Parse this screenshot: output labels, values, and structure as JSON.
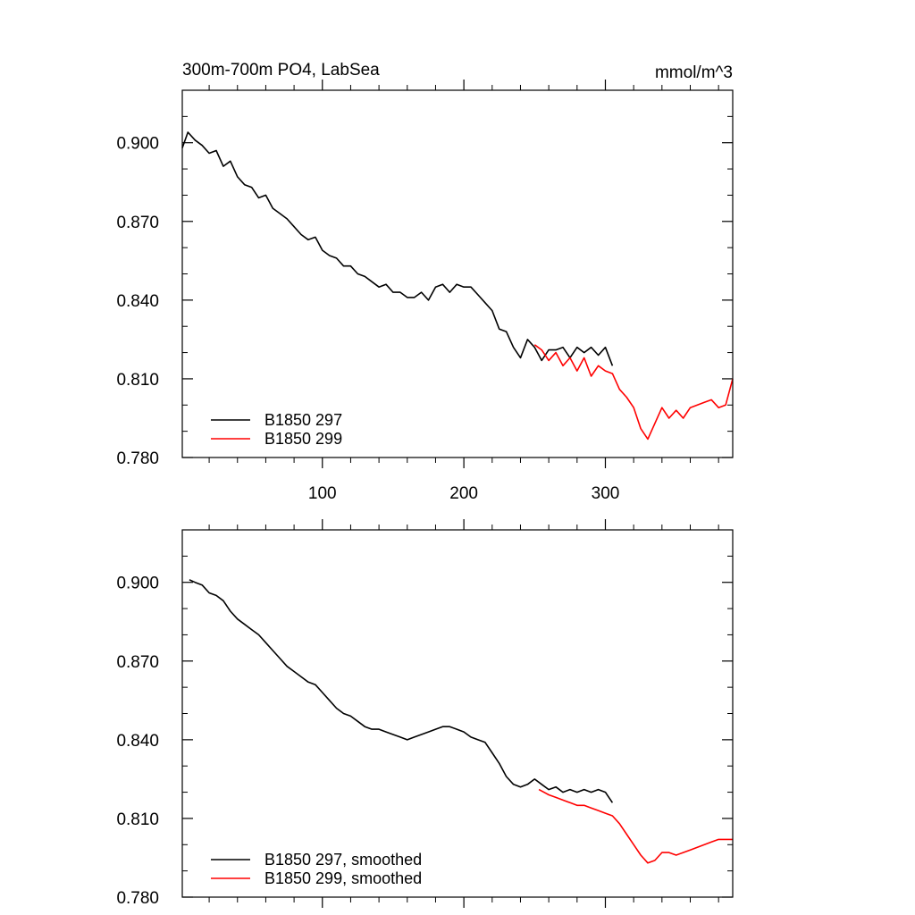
{
  "chart_data": [
    {
      "type": "line",
      "title": "300m-700m PO4, LabSea",
      "units": "mmol/m^3",
      "xlim": [
        1,
        390
      ],
      "ylim": [
        0.78,
        0.92
      ],
      "xticks": [
        100,
        200,
        300
      ],
      "yticks": [
        0.78,
        0.81,
        0.84,
        0.87,
        0.9
      ],
      "ytick_labels": [
        "0.780",
        "0.810",
        "0.840",
        "0.870",
        "0.900"
      ],
      "xtick_labels": [
        "100",
        "200",
        "300"
      ],
      "legend_position": "bottom-left",
      "series": [
        {
          "name": "B1850 297",
          "color": "#000000",
          "x": [
            1,
            5,
            10,
            15,
            20,
            25,
            30,
            35,
            40,
            45,
            50,
            55,
            60,
            65,
            70,
            75,
            80,
            85,
            90,
            95,
            100,
            105,
            110,
            115,
            120,
            125,
            130,
            135,
            140,
            145,
            150,
            155,
            160,
            165,
            170,
            175,
            180,
            185,
            190,
            195,
            200,
            205,
            210,
            215,
            220,
            225,
            230,
            235,
            240,
            245,
            250,
            255,
            260,
            265,
            270,
            275,
            280,
            285,
            290,
            295,
            300,
            305
          ],
          "y": [
            0.898,
            0.904,
            0.901,
            0.899,
            0.896,
            0.897,
            0.891,
            0.893,
            0.887,
            0.884,
            0.883,
            0.879,
            0.88,
            0.875,
            0.873,
            0.871,
            0.868,
            0.865,
            0.863,
            0.864,
            0.859,
            0.857,
            0.856,
            0.853,
            0.853,
            0.85,
            0.849,
            0.847,
            0.845,
            0.846,
            0.843,
            0.843,
            0.841,
            0.841,
            0.843,
            0.84,
            0.845,
            0.846,
            0.843,
            0.846,
            0.845,
            0.845,
            0.842,
            0.839,
            0.836,
            0.829,
            0.828,
            0.822,
            0.818,
            0.825,
            0.822,
            0.817,
            0.821,
            0.821,
            0.822,
            0.818,
            0.822,
            0.82,
            0.822,
            0.819,
            0.822,
            0.815
          ]
        },
        {
          "name": "B1850 299",
          "color": "#ff0000",
          "x": [
            250,
            255,
            260,
            265,
            270,
            275,
            280,
            285,
            290,
            295,
            300,
            305,
            310,
            315,
            320,
            325,
            330,
            335,
            340,
            345,
            350,
            355,
            360,
            365,
            370,
            375,
            380,
            385,
            390
          ],
          "y": [
            0.823,
            0.821,
            0.817,
            0.82,
            0.815,
            0.818,
            0.813,
            0.818,
            0.811,
            0.815,
            0.813,
            0.812,
            0.806,
            0.803,
            0.799,
            0.791,
            0.787,
            0.793,
            0.799,
            0.795,
            0.798,
            0.795,
            0.799,
            0.8,
            0.801,
            0.802,
            0.799,
            0.8,
            0.81
          ]
        }
      ]
    },
    {
      "type": "line",
      "xlim": [
        1,
        390
      ],
      "ylim": [
        0.78,
        0.92
      ],
      "xticks": [
        100,
        200,
        300
      ],
      "yticks": [
        0.78,
        0.81,
        0.84,
        0.87,
        0.9
      ],
      "ytick_labels": [
        "0.780",
        "0.810",
        "0.840",
        "0.870",
        "0.900"
      ],
      "legend_position": "bottom-left",
      "series": [
        {
          "name": "B1850 297, smoothed",
          "color": "#000000",
          "x": [
            6,
            10,
            15,
            20,
            25,
            30,
            35,
            40,
            45,
            50,
            55,
            60,
            65,
            70,
            75,
            80,
            85,
            90,
            95,
            100,
            105,
            110,
            115,
            120,
            125,
            130,
            135,
            140,
            145,
            150,
            155,
            160,
            165,
            170,
            175,
            180,
            185,
            190,
            195,
            200,
            205,
            210,
            215,
            220,
            225,
            230,
            235,
            240,
            245,
            250,
            255,
            260,
            265,
            270,
            275,
            280,
            285,
            290,
            295,
            300,
            305
          ],
          "y": [
            0.901,
            0.9,
            0.899,
            0.896,
            0.895,
            0.893,
            0.889,
            0.886,
            0.884,
            0.882,
            0.88,
            0.877,
            0.874,
            0.871,
            0.868,
            0.866,
            0.864,
            0.862,
            0.861,
            0.858,
            0.855,
            0.852,
            0.85,
            0.849,
            0.847,
            0.845,
            0.844,
            0.844,
            0.843,
            0.842,
            0.841,
            0.84,
            0.841,
            0.842,
            0.843,
            0.844,
            0.845,
            0.845,
            0.844,
            0.843,
            0.841,
            0.84,
            0.839,
            0.835,
            0.831,
            0.826,
            0.823,
            0.822,
            0.823,
            0.825,
            0.823,
            0.821,
            0.822,
            0.82,
            0.821,
            0.82,
            0.821,
            0.82,
            0.821,
            0.82,
            0.816
          ]
        },
        {
          "name": "B1850 299, smoothed",
          "color": "#ff0000",
          "x": [
            253,
            260,
            265,
            270,
            275,
            280,
            285,
            290,
            295,
            300,
            305,
            310,
            315,
            320,
            325,
            330,
            335,
            340,
            345,
            350,
            355,
            360,
            365,
            370,
            375,
            380,
            385,
            390
          ],
          "y": [
            0.821,
            0.819,
            0.818,
            0.817,
            0.816,
            0.815,
            0.815,
            0.814,
            0.813,
            0.812,
            0.811,
            0.808,
            0.804,
            0.8,
            0.796,
            0.793,
            0.794,
            0.797,
            0.797,
            0.796,
            0.797,
            0.798,
            0.799,
            0.8,
            0.801,
            0.802,
            0.802,
            0.802
          ]
        }
      ]
    }
  ]
}
